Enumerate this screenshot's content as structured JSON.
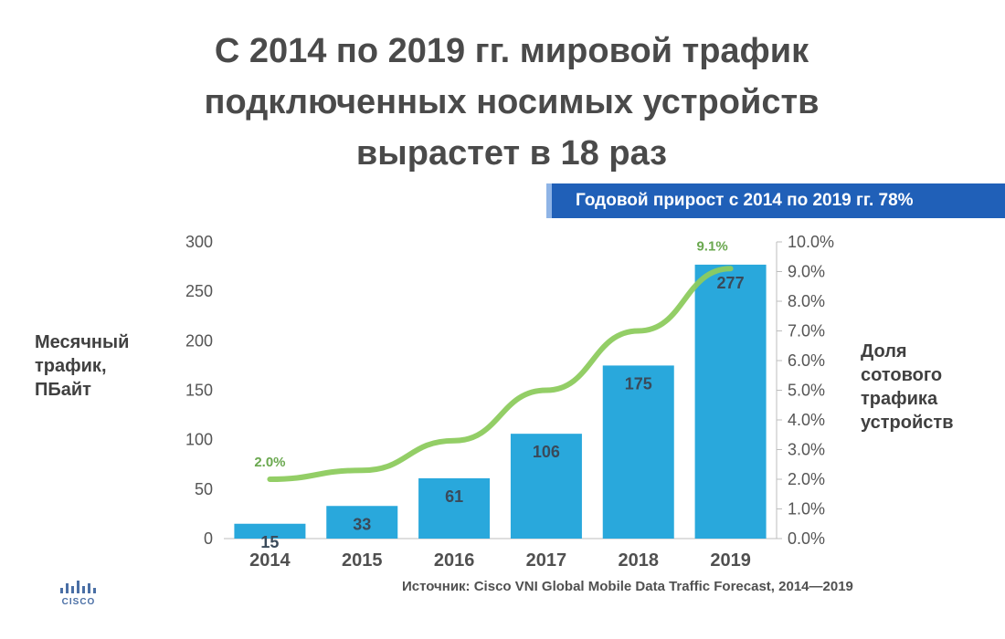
{
  "title_lines": [
    "С 2014 по 2019 гг. мировой трафик",
    "подключенных носимых устройств",
    "вырастет в 18 раз"
  ],
  "banner": "Годовой прирост с 2014 по 2019 гг. 78%",
  "left_axis_label": [
    "Месячный",
    "трафик,",
    "ПБайт"
  ],
  "right_axis_label": [
    "Доля",
    "сотового",
    "трафика",
    "устройств"
  ],
  "source": "Источник: Cisco VNI Global Mobile Data Traffic Forecast, 2014—2019",
  "logo_text": "CISCO",
  "colors": {
    "bar": "#29a8dc",
    "line": "#8dcb5e",
    "banner": "#2060b8"
  },
  "chart_data": {
    "type": "bar",
    "categories": [
      "2014",
      "2015",
      "2016",
      "2017",
      "2018",
      "2019"
    ],
    "series": [
      {
        "values": [
          15,
          33,
          61,
          106,
          175,
          277
        ],
        "axis": "left"
      },
      {
        "type": "line",
        "axis": "right",
        "values": [
          2.0,
          2.3,
          3.3,
          5.0,
          7.0,
          9.1
        ]
      }
    ],
    "data_labels": [
      "15",
      "33",
      "61",
      "106",
      "175",
      "277"
    ],
    "line_point_labels": {
      "first": "2.0%",
      "last": "9.1%"
    },
    "y_left": {
      "ylim": [
        0,
        300
      ],
      "ticks": [
        "0",
        "50",
        "100",
        "150",
        "200",
        "250",
        "300"
      ]
    },
    "y_right": {
      "ylim": [
        0,
        10
      ],
      "ticks": [
        "0.0%",
        "1.0%",
        "2.0%",
        "3.0%",
        "4.0%",
        "5.0%",
        "6.0%",
        "7.0%",
        "8.0%",
        "9.0%",
        "10.0%"
      ]
    },
    "grid": false,
    "legend": "none"
  }
}
